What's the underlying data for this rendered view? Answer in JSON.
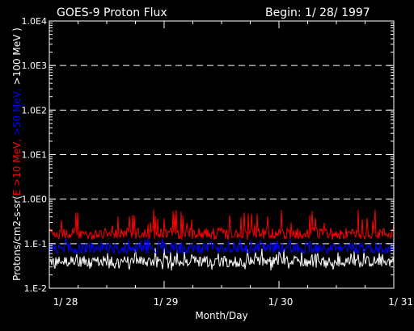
{
  "chart_data": {
    "type": "line",
    "title": "GOES-9 Proton Flux",
    "begin_label": "Begin: 1/ 28/ 1997",
    "xlabel": "Month/Day",
    "ylabel_parts": [
      {
        "text": "Protons/cm2-s-sr(",
        "color": "#ffffff"
      },
      {
        "text": "E >10 MeV, ",
        "color": "#ff0000"
      },
      {
        "text": ">50 MeV, ",
        "color": "#0000ff"
      },
      {
        "text": ">100 MeV )",
        "color": "#ffffff"
      }
    ],
    "y_scale": "log",
    "ylim": [
      0.01,
      10000
    ],
    "y_ticks": [
      {
        "value": 10000,
        "label": "1.0E4"
      },
      {
        "value": 1000,
        "label": "1.0E3"
      },
      {
        "value": 100,
        "label": "1.0E2"
      },
      {
        "value": 10,
        "label": "1.0E1"
      },
      {
        "value": 1,
        "label": "1.0E0"
      },
      {
        "value": 0.1,
        "label": "1.E-1"
      },
      {
        "value": 0.01,
        "label": "1.E-2"
      }
    ],
    "grid": "dashed horizontal at decades",
    "x_ticks": [
      "1/ 28",
      "1/ 29",
      "1/ 30",
      "1/ 31"
    ],
    "series": [
      {
        "label": ">10 MeV",
        "color": "#ff0000",
        "typical": 0.17,
        "min": 0.12,
        "max": 0.6
      },
      {
        "label": ">50 MeV",
        "color": "#0000ff",
        "typical": 0.08,
        "min": 0.06,
        "max": 0.13
      },
      {
        "label": ">100 MeV",
        "color": "#ffffff",
        "typical": 0.04,
        "min": 0.025,
        "max": 0.08
      }
    ]
  }
}
